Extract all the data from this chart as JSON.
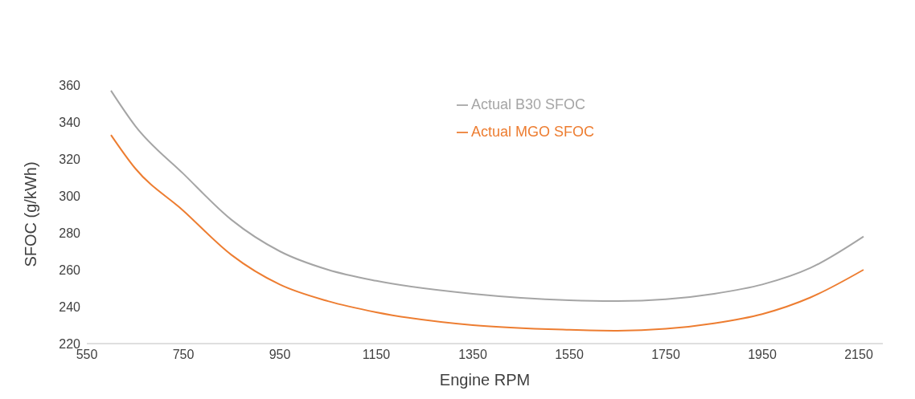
{
  "chart_data": {
    "type": "line",
    "xlabel": "Engine RPM",
    "ylabel": "SFOC (g/kWh)",
    "x": [
      600,
      650,
      750,
      850,
      950,
      1050,
      1150,
      1350,
      1550,
      1650,
      1750,
      1850,
      1950,
      2050,
      2160
    ],
    "series": [
      {
        "name": "Actual MGO SFOC",
        "color": "#ed7d31",
        "values": [
          333,
          315,
          292,
          268,
          252,
          243,
          237,
          230,
          227.5,
          227,
          228,
          231,
          236,
          245,
          260
        ]
      },
      {
        "name": "Actual B30 SFOC",
        "color": "#a5a5a5",
        "values": [
          357,
          338,
          312,
          287,
          270,
          260,
          254,
          247,
          243.5,
          243,
          244,
          247,
          252,
          261,
          278
        ]
      }
    ],
    "xlim": [
      550,
      2200
    ],
    "xticks": [
      550,
      750,
      950,
      1150,
      1350,
      1550,
      1750,
      1950,
      2150
    ],
    "ylim": [
      220,
      360
    ],
    "yticks": [
      220,
      240,
      260,
      280,
      300,
      320,
      340,
      360
    ],
    "grid": false,
    "legend": "top",
    "marker": "none",
    "line_style": "solid"
  }
}
